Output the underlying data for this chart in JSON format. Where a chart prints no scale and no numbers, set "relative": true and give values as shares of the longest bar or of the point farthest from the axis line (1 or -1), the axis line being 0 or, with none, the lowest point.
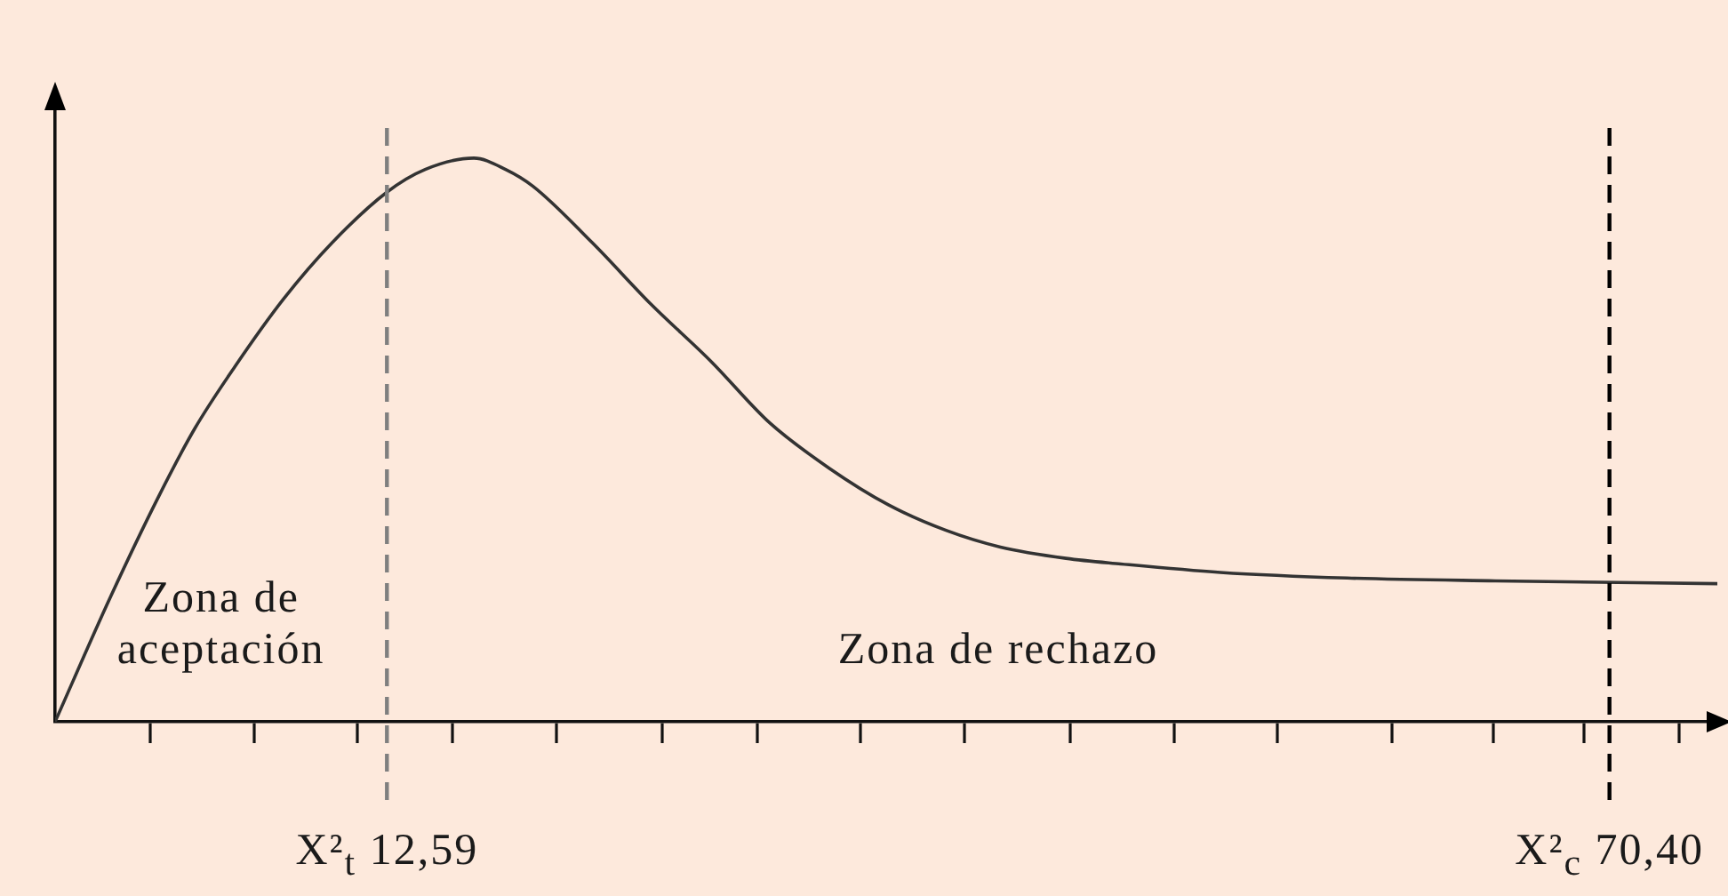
{
  "chart_data": {
    "type": "line",
    "relative": true,
    "color": "#333333",
    "x": [
      -3.1,
      -0.5,
      1.8,
      3.5,
      5.4,
      7.7,
      10.0,
      12.6,
      14.4,
      16.7,
      18.2,
      19.5,
      22.3,
      25.1,
      27.9,
      30.7,
      33.5,
      36.3,
      39.0,
      41.6,
      44.7,
      47.3,
      52.0,
      58.0,
      65.0,
      75.5
    ],
    "values": [
      0,
      0.22,
      0.4,
      0.52,
      0.63,
      0.75,
      0.85,
      0.94,
      0.98,
      1,
      0.98,
      0.95,
      0.85,
      0.74,
      0.64,
      0.53,
      0.45,
      0.385,
      0.34,
      0.31,
      0.29,
      0.28,
      0.265,
      0.255,
      0.25,
      0.245
    ],
    "xlim": [
      -3.1,
      75.5
    ],
    "xticks": [
      {
        "value": 1.4,
        "label": null
      },
      {
        "value": 6.3,
        "label": null
      },
      {
        "value": 11.2,
        "label": null
      },
      {
        "value": 12.59,
        "label": "X²$_{t}$ 12,59"
      },
      {
        "value": 15.7,
        "label": null
      },
      {
        "value": 20.6,
        "label": null
      },
      {
        "value": 25.6,
        "label": null
      },
      {
        "value": 30.1,
        "label": null
      },
      {
        "value": 35.0,
        "label": null
      },
      {
        "value": 39.9,
        "label": null
      },
      {
        "value": 44.9,
        "label": null
      },
      {
        "value": 49.8,
        "label": null
      },
      {
        "value": 54.7,
        "label": null
      },
      {
        "value": 60.1,
        "label": null
      },
      {
        "value": 64.9,
        "label": null
      },
      {
        "value": 69.2,
        "label": null
      },
      {
        "value": 70.4,
        "label": "X²$_{c}$ 70,40"
      },
      {
        "value": 73.7,
        "label": null
      }
    ],
    "tick_labels": "x",
    "ref_lines": [
      {
        "axis": "x",
        "value": 12.59,
        "color": "#7f7f7f",
        "line_style": "dashed"
      },
      {
        "axis": "x",
        "value": 70.4,
        "color": "#000000",
        "line_style": "dashed"
      }
    ],
    "annotations": [
      "Zona de aceptación",
      "Zona de rechazo"
    ]
  }
}
